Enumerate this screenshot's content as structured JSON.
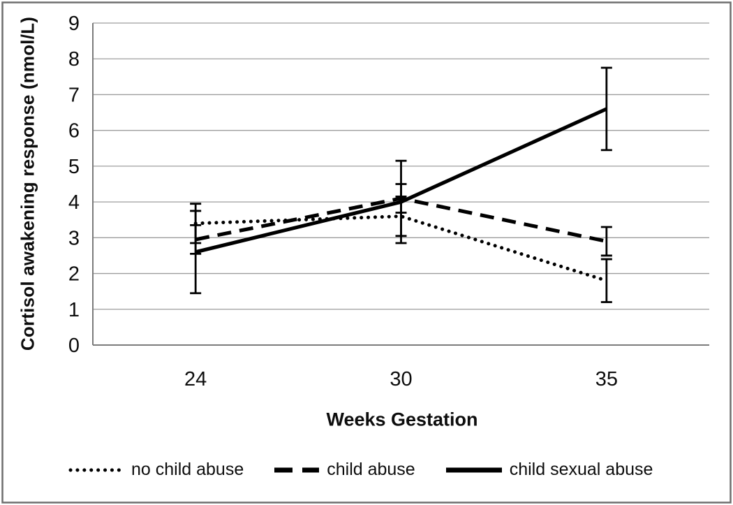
{
  "chart_data": {
    "type": "line",
    "title": "",
    "xlabel": "Weeks Gestation",
    "ylabel": "Cortisol awakening response (nmol/L)",
    "categories": [
      "24",
      "30",
      "35"
    ],
    "y_ticks": [
      0,
      1,
      2,
      3,
      4,
      5,
      6,
      7,
      8,
      9
    ],
    "ylim": [
      0,
      9
    ],
    "grid": "horizontal",
    "legend_position": "bottom",
    "error_bars": true,
    "line_color": "#000000",
    "gridline_color": "#9d9d9d",
    "axis_color": "#7b7b7b",
    "frame_color": "#6e6e6e",
    "series": [
      {
        "name": "no child abuse",
        "style": "dotted",
        "values": [
          3.4,
          3.6,
          1.8
        ],
        "error": [
          0.55,
          0.55,
          0.6
        ]
      },
      {
        "name": "child abuse",
        "style": "dashed",
        "values": [
          2.95,
          4.1,
          2.9
        ],
        "error": [
          0.4,
          0.4,
          0.4
        ]
      },
      {
        "name": "child sexual abuse",
        "style": "solid",
        "values": [
          2.6,
          4.0,
          6.6
        ],
        "error": [
          1.15,
          1.15,
          1.15
        ]
      }
    ]
  }
}
